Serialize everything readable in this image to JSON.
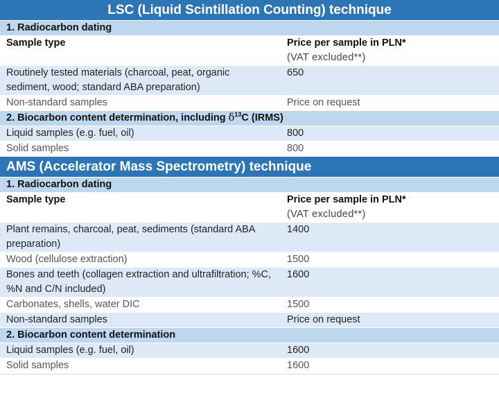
{
  "lsc": {
    "title": "LSC (Liquid Scintillation Counting) technique",
    "section1_title": "1. Radiocarbon dating",
    "header_col1": "Sample type",
    "header_col2": "Price per sample in PLN*",
    "header_note": "(VAT excluded**)",
    "rows1": [
      {
        "label": "Routinely tested materials (charcoal, peat, organic sediment, wood; standard ABA preparation)",
        "price": "650"
      },
      {
        "label": "Non-standard samples",
        "price": "Price on request"
      }
    ],
    "section2_title_pre": "2. Biocarbon content determination, including ",
    "section2_delta": "δ",
    "section2_sup": "13",
    "section2_title_post": "C (IRMS)",
    "rows2": [
      {
        "label": "Liquid samples (e.g. fuel, oil)",
        "price": "800"
      },
      {
        "label": "Solid samples",
        "price": "800"
      }
    ]
  },
  "ams": {
    "title": "AMS (Accelerator Mass Spectrometry) technique",
    "section1_title": "1. Radiocarbon dating",
    "header_col1": "Sample type",
    "header_col2": "Price per sample in PLN*",
    "header_note": "(VAT excluded**)",
    "rows1": [
      {
        "label": "Plant remains, charcoal, peat, sediments (standard ABA preparation)",
        "price": "1400"
      },
      {
        "label": "Wood (cellulose extraction)",
        "price": "1500"
      },
      {
        "label": "Bones and teeth (collagen extraction and ultrafiltration; %C, %N and C/N included)",
        "price": "1600"
      },
      {
        "label": "Carbonates, shells, water DIC",
        "price": "1500"
      },
      {
        "label": "Non-standard samples",
        "price": "Price on request"
      }
    ],
    "section2_title": "2. Biocarbon content determination",
    "rows2": [
      {
        "label": "Liquid samples (e.g. fuel, oil)",
        "price": "1600"
      },
      {
        "label": "Solid samples",
        "price": "1600"
      }
    ]
  }
}
